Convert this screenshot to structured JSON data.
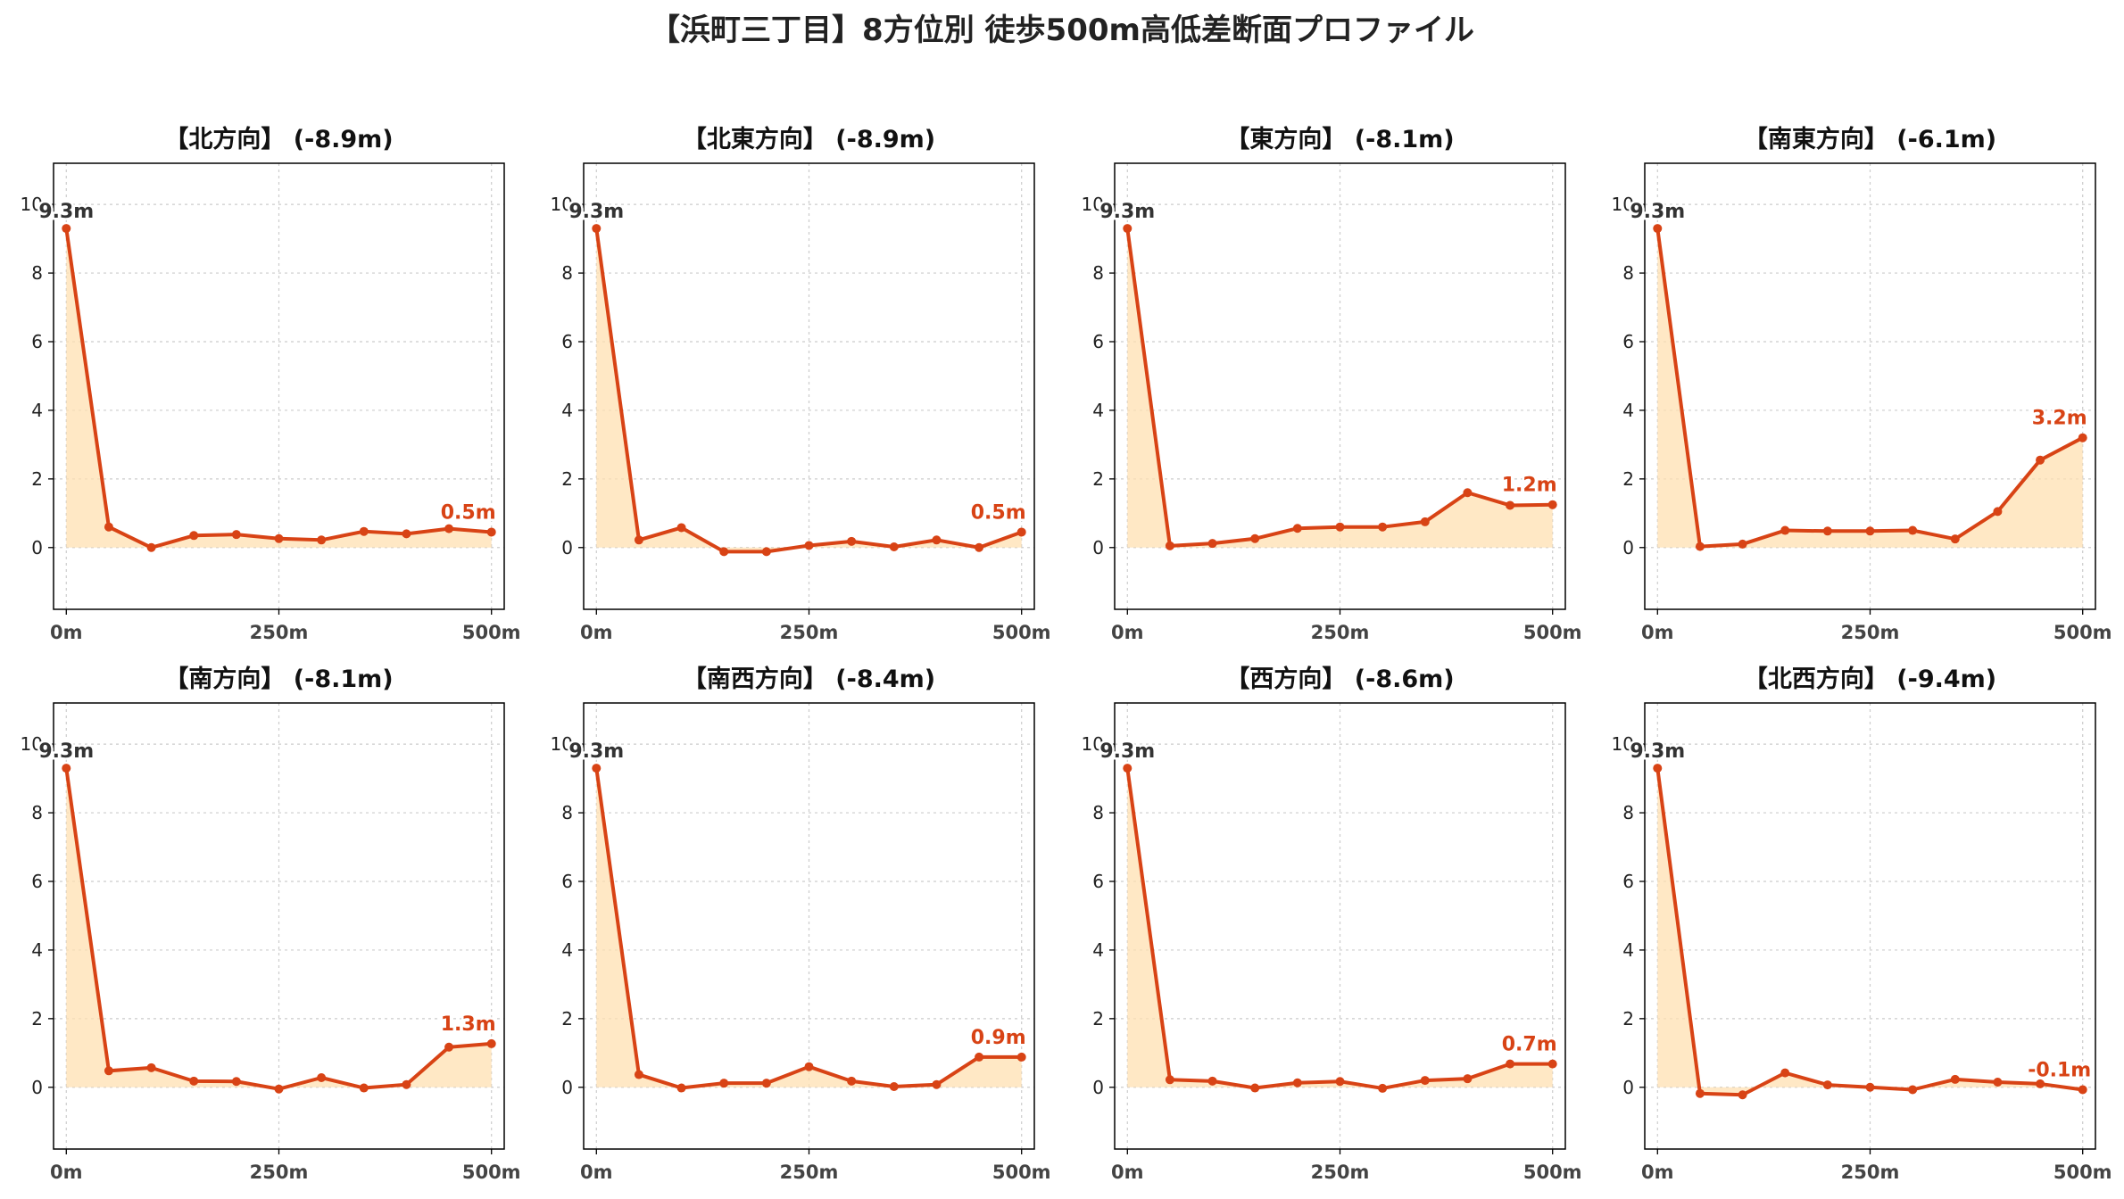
{
  "title": "【浜町三丁目】8方位別 徒歩500m高低差断面プロファイル",
  "chart_data": {
    "type": "line",
    "x": [
      0,
      50,
      100,
      150,
      200,
      250,
      300,
      350,
      400,
      450,
      500
    ],
    "xticks": [
      0,
      250,
      500
    ],
    "xtick_labels": [
      "0m",
      "250m",
      "500m"
    ],
    "xlim": [
      -15,
      515
    ],
    "ylim": [
      -1.8,
      11.2
    ],
    "yticks": [
      0,
      2,
      4,
      6,
      8,
      10
    ],
    "ytick_labels": [
      "0",
      "2",
      "4",
      "6",
      "8",
      "10"
    ],
    "grid": true,
    "colors": {
      "line": "#d84315",
      "fill": "#ffe0b2",
      "grid": "#cccccc"
    },
    "charts": [
      {
        "title": "【北方向】 (-8.9m)",
        "start_label": "9.3m",
        "end_label": "0.5m",
        "values": [
          9.3,
          0.6,
          0.0,
          0.35,
          0.38,
          0.26,
          0.22,
          0.47,
          0.4,
          0.55,
          0.45
        ]
      },
      {
        "title": "【北東方向】 (-8.9m)",
        "start_label": "9.3m",
        "end_label": "0.5m",
        "values": [
          9.3,
          0.22,
          0.58,
          -0.12,
          -0.12,
          0.06,
          0.18,
          0.02,
          0.22,
          0.0,
          0.45
        ]
      },
      {
        "title": "【東方向】 (-8.1m)",
        "start_label": "9.3m",
        "end_label": "1.2m",
        "values": [
          9.3,
          0.05,
          0.12,
          0.26,
          0.56,
          0.6,
          0.6,
          0.75,
          1.6,
          1.23,
          1.25
        ]
      },
      {
        "title": "【南東方向】 (-6.1m)",
        "start_label": "9.3m",
        "end_label": "3.2m",
        "values": [
          9.3,
          0.03,
          0.1,
          0.5,
          0.48,
          0.48,
          0.5,
          0.25,
          1.05,
          2.55,
          3.2
        ]
      },
      {
        "title": "【南方向】 (-8.1m)",
        "start_label": "9.3m",
        "end_label": "1.3m",
        "values": [
          9.3,
          0.48,
          0.57,
          0.18,
          0.17,
          -0.05,
          0.28,
          -0.02,
          0.08,
          1.17,
          1.27
        ]
      },
      {
        "title": "【南西方向】 (-8.4m)",
        "start_label": "9.3m",
        "end_label": "0.9m",
        "values": [
          9.3,
          0.37,
          -0.02,
          0.12,
          0.12,
          0.6,
          0.18,
          0.02,
          0.08,
          0.88,
          0.88
        ]
      },
      {
        "title": "【西方向】 (-8.6m)",
        "start_label": "9.3m",
        "end_label": "0.7m",
        "values": [
          9.3,
          0.22,
          0.18,
          -0.02,
          0.13,
          0.17,
          -0.03,
          0.2,
          0.25,
          0.68,
          0.68
        ]
      },
      {
        "title": "【北西方向】 (-9.4m)",
        "start_label": "9.3m",
        "end_label": "-0.1m",
        "values": [
          9.3,
          -0.18,
          -0.22,
          0.42,
          0.07,
          0.0,
          -0.07,
          0.23,
          0.15,
          0.1,
          -0.07
        ]
      }
    ]
  }
}
